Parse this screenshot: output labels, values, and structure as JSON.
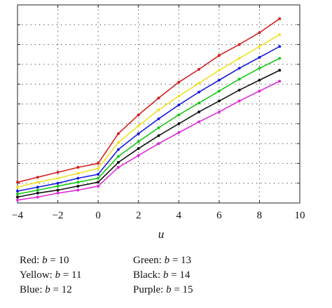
{
  "chart_data": {
    "type": "line",
    "xlabel": "u",
    "ylabel": "",
    "xlim": [
      -4,
      10
    ],
    "xticks": [
      -4,
      -2,
      0,
      2,
      4,
      6,
      8,
      10
    ],
    "xtick_labels": [
      "−4",
      "−2",
      "0",
      "2",
      "4",
      "6",
      "8",
      "10"
    ],
    "ylim": [
      0,
      10
    ],
    "yticks": [
      0,
      1,
      2,
      3,
      4,
      5,
      6,
      7,
      8,
      9,
      10
    ],
    "ytick_labels_visible": false,
    "grid": "dotted",
    "x": [
      -4,
      -3,
      -2,
      -1,
      0,
      1,
      2,
      3,
      4,
      5,
      6,
      7,
      8,
      9
    ],
    "series": [
      {
        "name": "Red",
        "b": "10",
        "color": "#d42020",
        "values": [
          1.05,
          1.3,
          1.55,
          1.8,
          2.0,
          3.5,
          4.45,
          5.3,
          6.1,
          6.75,
          7.45,
          8.0,
          8.6,
          9.3
        ]
      },
      {
        "name": "Yellow",
        "b": "11",
        "color": "#f0e22a",
        "values": [
          0.8,
          1.05,
          1.25,
          1.5,
          1.75,
          3.05,
          3.9,
          4.7,
          5.4,
          6.05,
          6.7,
          7.3,
          7.9,
          8.5
        ]
      },
      {
        "name": "Blue",
        "b": "12",
        "color": "#1a1ae0",
        "values": [
          0.6,
          0.8,
          1.0,
          1.25,
          1.45,
          2.7,
          3.5,
          4.25,
          4.95,
          5.6,
          6.2,
          6.8,
          7.35,
          7.9
        ]
      },
      {
        "name": "Green",
        "b": "13",
        "color": "#18c818",
        "values": [
          0.45,
          0.65,
          0.85,
          1.05,
          1.25,
          2.35,
          3.1,
          3.8,
          4.45,
          5.05,
          5.65,
          6.25,
          6.8,
          7.3
        ]
      },
      {
        "name": "Black",
        "b": "14",
        "color": "#111111",
        "values": [
          0.3,
          0.5,
          0.65,
          0.85,
          1.05,
          2.05,
          2.75,
          3.4,
          4.0,
          4.6,
          5.15,
          5.7,
          6.2,
          6.7
        ]
      },
      {
        "name": "Purple",
        "b": "15",
        "color": "#dd2bd8",
        "values": [
          0.15,
          0.3,
          0.5,
          0.65,
          0.85,
          1.8,
          2.4,
          3.0,
          3.55,
          4.1,
          4.6,
          5.15,
          5.65,
          6.15
        ]
      }
    ]
  },
  "legend": {
    "left": [
      {
        "name": "Red",
        "sep": ": ",
        "var": "b",
        "value": " = 10"
      },
      {
        "name": "Yellow",
        "sep": ": ",
        "var": "b",
        "value": " = 11"
      },
      {
        "name": "Blue",
        "sep": ": ",
        "var": "b",
        "value": " = 12"
      }
    ],
    "right": [
      {
        "name": "Green",
        "sep": ": ",
        "var": "b",
        "value": " = 13"
      },
      {
        "name": "Black",
        "sep": ": ",
        "var": "b",
        "value": " = 14"
      },
      {
        "name": "Purple",
        "sep": ": ",
        "var": "b",
        "value": " = 15"
      }
    ]
  }
}
